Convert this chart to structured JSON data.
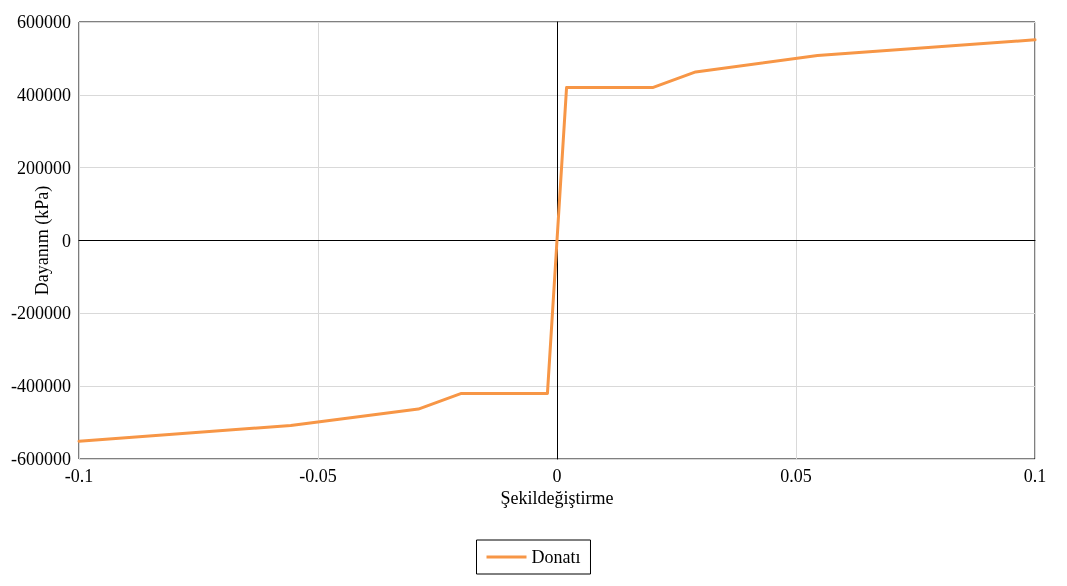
{
  "chart_data": {
    "type": "line",
    "xlabel": "Şekildeğiştirme",
    "ylabel": "Dayanım (kPa)",
    "series": [
      {
        "name": "Donatı",
        "color": "#f79646",
        "x": [
          -0.1,
          -0.0557,
          -0.029,
          -0.02,
          -0.002,
          0.002,
          0.02,
          0.029,
          0.0545,
          0.1
        ],
        "values": [
          -551000,
          -508000,
          -463000,
          -420000,
          -420000,
          420000,
          420000,
          463000,
          508000,
          551000
        ]
      }
    ],
    "xlim": [
      -0.1,
      0.1
    ],
    "xticks": [
      -0.1,
      -0.05,
      0,
      0.05,
      0.1
    ],
    "ylim": [
      -600000,
      600000
    ],
    "yticks": [
      -600000,
      -400000,
      -200000,
      0,
      200000,
      400000,
      600000
    ],
    "grid": true,
    "legend": "bottom",
    "marker": "none",
    "line_style": "solid"
  }
}
